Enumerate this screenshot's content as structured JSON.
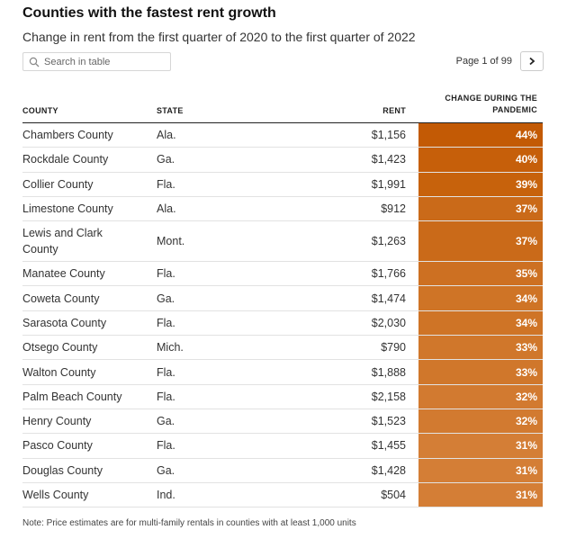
{
  "header": {
    "title": "Counties with the fastest rent growth",
    "subtitle": "Change in rent from the first quarter of 2020 to the first quarter of 2022"
  },
  "search": {
    "placeholder": "Search in table"
  },
  "pager": {
    "text": "Page 1 of 99"
  },
  "columns": {
    "county": "COUNTY",
    "state": "STATE",
    "rent": "RENT",
    "change_line1": "CHANGE DURING THE",
    "change_line2": "PANDEMIC"
  },
  "rows": [
    {
      "county": "Chambers County",
      "state": "Ala.",
      "rent": "$1,156",
      "change": "44%",
      "color": "#c35a05"
    },
    {
      "county": "Rockdale County",
      "state": "Ga.",
      "rent": "$1,423",
      "change": "40%",
      "color": "#c65f0a"
    },
    {
      "county": "Collier County",
      "state": "Fla.",
      "rent": "$1,991",
      "change": "39%",
      "color": "#c7620c"
    },
    {
      "county": "Limestone County",
      "state": "Ala.",
      "rent": "$912",
      "change": "37%",
      "color": "#ca6a19"
    },
    {
      "county": "Lewis and Clark County",
      "state": "Mont.",
      "rent": "$1,263",
      "change": "37%",
      "color": "#ca6a19"
    },
    {
      "county": "Manatee County",
      "state": "Fla.",
      "rent": "$1,766",
      "change": "35%",
      "color": "#cd7022"
    },
    {
      "county": "Coweta County",
      "state": "Ga.",
      "rent": "$1,474",
      "change": "34%",
      "color": "#cf7426"
    },
    {
      "county": "Sarasota County",
      "state": "Fla.",
      "rent": "$2,030",
      "change": "34%",
      "color": "#cf7426"
    },
    {
      "county": "Otsego County",
      "state": "Mich.",
      "rent": "$790",
      "change": "33%",
      "color": "#d0772b"
    },
    {
      "county": "Walton County",
      "state": "Fla.",
      "rent": "$1,888",
      "change": "33%",
      "color": "#d0772b"
    },
    {
      "county": "Palm Beach County",
      "state": "Fla.",
      "rent": "$2,158",
      "change": "32%",
      "color": "#d27a30"
    },
    {
      "county": "Henry County",
      "state": "Ga.",
      "rent": "$1,523",
      "change": "32%",
      "color": "#d27a30"
    },
    {
      "county": "Pasco County",
      "state": "Fla.",
      "rent": "$1,455",
      "change": "31%",
      "color": "#d47e36"
    },
    {
      "county": "Douglas County",
      "state": "Ga.",
      "rent": "$1,428",
      "change": "31%",
      "color": "#d47e36"
    },
    {
      "county": "Wells County",
      "state": "Ind.",
      "rent": "$504",
      "change": "31%",
      "color": "#d47e36"
    }
  ],
  "note": "Note: Price estimates are for multi-family rentals in counties with at least 1,000 units"
}
